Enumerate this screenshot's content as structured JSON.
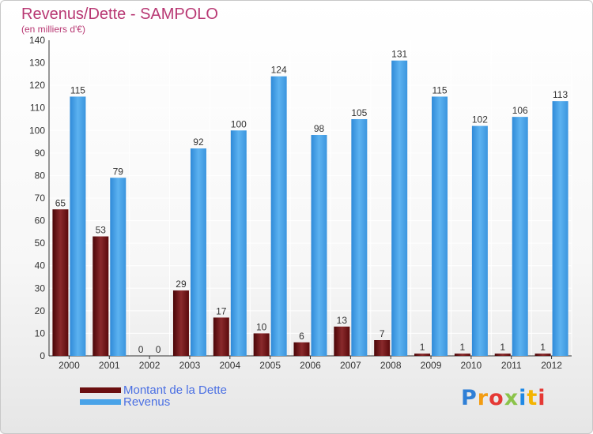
{
  "header": {
    "title": "Revenus/Dette - SAMPOLO",
    "subtitle": "(en milliers d'€)"
  },
  "legend": [
    {
      "label": "Montant de la Dette",
      "color": "#6b0f10"
    },
    {
      "label": "Revenus",
      "color": "#4aa3e8"
    }
  ],
  "logo": {
    "text": "Proxiti",
    "colors": [
      "#2f7fd6",
      "#f39c12",
      "#e53935",
      "#8bc34a",
      "#1e88e5",
      "#f4b400",
      "#e53935"
    ]
  },
  "chart_data": {
    "type": "bar",
    "title": "Revenus/Dette - SAMPOLO",
    "subtitle": "(en milliers d'€)",
    "categories": [
      "2000",
      "2001",
      "2002",
      "2003",
      "2004",
      "2005",
      "2006",
      "2007",
      "2008",
      "2009",
      "2010",
      "2011",
      "2012"
    ],
    "series": [
      {
        "name": "Montant de la Dette",
        "color": "#6b0f10",
        "values": [
          65,
          53,
          0,
          29,
          17,
          10,
          6,
          13,
          7,
          1,
          1,
          1,
          1
        ]
      },
      {
        "name": "Revenus",
        "color": "#4aa3e8",
        "values": [
          115,
          79,
          0,
          92,
          100,
          124,
          98,
          105,
          131,
          115,
          102,
          106,
          113
        ]
      }
    ],
    "ylim": [
      0,
      140
    ],
    "yticks": [
      0,
      10,
      20,
      30,
      40,
      50,
      60,
      70,
      80,
      90,
      100,
      110,
      120,
      130,
      140
    ],
    "grid": true,
    "legend_position": "bottom-left"
  }
}
